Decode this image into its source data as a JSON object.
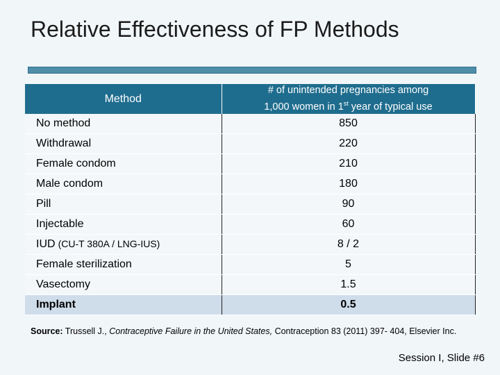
{
  "slide": {
    "title": "Relative Effectiveness of FP Methods",
    "slide_label": "Session I, Slide #6"
  },
  "table": {
    "header_method": "Method",
    "header_pregnancies_part1": "# of unintended pregnancies among",
    "header_pregnancies_part2": "1,000 women in 1",
    "header_pregnancies_sup": "st",
    "header_pregnancies_part3": " year of typical use",
    "rows": [
      {
        "method": "No method",
        "sub": "",
        "value": "850"
      },
      {
        "method": "Withdrawal",
        "sub": "",
        "value": "220"
      },
      {
        "method": "Female condom",
        "sub": "",
        "value": "210"
      },
      {
        "method": "Male condom",
        "sub": "",
        "value": "180"
      },
      {
        "method": "Pill",
        "sub": "",
        "value": "90"
      },
      {
        "method": "Injectable",
        "sub": "",
        "value": "60"
      },
      {
        "method": "IUD",
        "sub": "(CU-T 380A / LNG-IUS)",
        "value": "8 / 2"
      },
      {
        "method": "Female sterilization",
        "sub": "",
        "value": "5"
      },
      {
        "method": "Vasectomy",
        "sub": "",
        "value": "1.5"
      },
      {
        "method": "Implant",
        "sub": "",
        "value": "0.5"
      }
    ]
  },
  "source": {
    "label": "Source:",
    "authors": " Trussell J., ",
    "work": "Contraceptive Failure in the United States,",
    "rest": " Contraception 83 (2011) 397- 404, Elsevier Inc."
  }
}
